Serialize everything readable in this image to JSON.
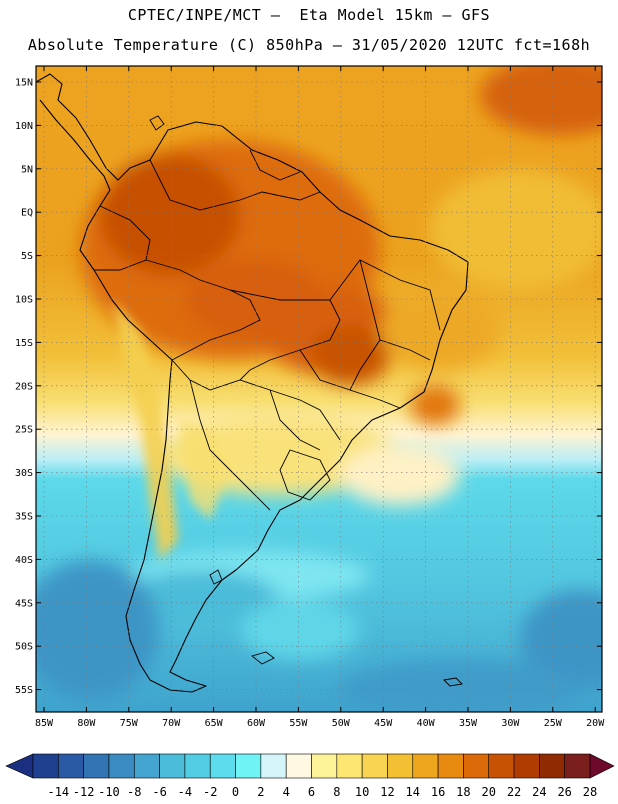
{
  "title_line1": "CPTEC/INPE/MCT –  Eta Model 15km – GFS",
  "title_line2": "Absolute Temperature (C) 850hPa – 31/05/2020 12UTC fct=168h",
  "lat_labels": [
    "15N",
    "10N",
    "5N",
    "EQ",
    "5S",
    "10S",
    "15S",
    "20S",
    "25S",
    "30S",
    "35S",
    "40S",
    "45S",
    "50S",
    "55S"
  ],
  "lon_labels": [
    "85W",
    "80W",
    "75W",
    "70W",
    "65W",
    "60W",
    "55W",
    "50W",
    "45W",
    "40W",
    "35W",
    "30W",
    "25W",
    "20W"
  ],
  "colorbar": {
    "labels": [
      "-14",
      "-12",
      "-10",
      "-8",
      "-6",
      "-4",
      "-2",
      "0",
      "2",
      "4",
      "6",
      "8",
      "10",
      "12",
      "14",
      "16",
      "18",
      "20",
      "22",
      "24",
      "26",
      "28"
    ],
    "colors": [
      "#1f3f8f",
      "#2a5aa6",
      "#3274b4",
      "#3a8cc2",
      "#43a5cf",
      "#4bbcd9",
      "#52cde3",
      "#5cdcec",
      "#6ff3f5",
      "#d4f6fb",
      "#fff8e3",
      "#fff39a",
      "#fde671",
      "#f8d452",
      "#f3bf33",
      "#eda61e",
      "#e88a10",
      "#dd6a08",
      "#c85203",
      "#b03c02",
      "#8f2a02",
      "#7a1e1e"
    ],
    "left_arrow_color": "#1a2f80",
    "right_arrow_color": "#6d0a2c"
  }
}
